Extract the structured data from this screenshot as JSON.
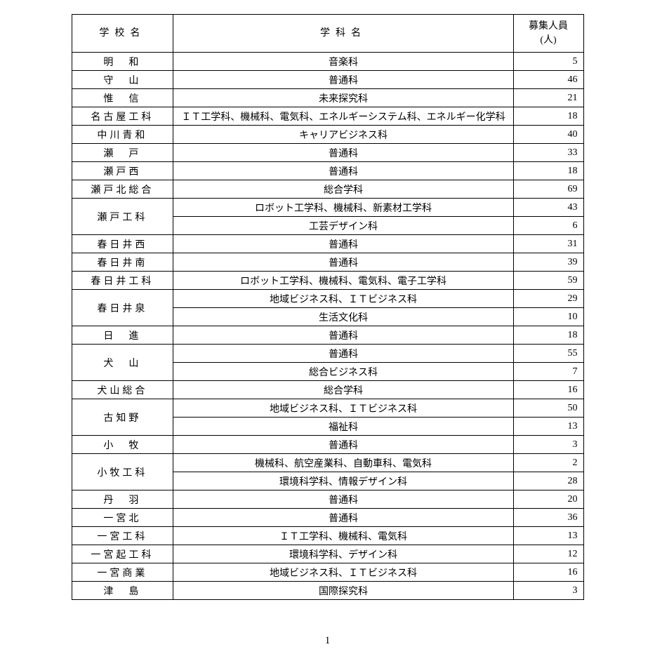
{
  "table": {
    "headers": {
      "school": "学校名",
      "department": "学科名",
      "count": "募集人員\n(人)"
    },
    "rows": [
      {
        "school": "明　和",
        "dept": "音楽科",
        "count": "5",
        "rowspan": 1
      },
      {
        "school": "守　山",
        "dept": "普通科",
        "count": "46",
        "rowspan": 1
      },
      {
        "school": "惟　信",
        "dept": "未来探究科",
        "count": "21",
        "rowspan": 1
      },
      {
        "school": "名古屋工科",
        "dept": "ＩＴ工学科、機械科、電気科、エネルギーシステム科、エネルギー化学科",
        "count": "18",
        "rowspan": 1
      },
      {
        "school": "中川青和",
        "dept": "キャリアビジネス科",
        "count": "40",
        "rowspan": 1
      },
      {
        "school": "瀬　戸",
        "dept": "普通科",
        "count": "33",
        "rowspan": 1
      },
      {
        "school": "瀬戸西",
        "dept": "普通科",
        "count": "18",
        "rowspan": 1
      },
      {
        "school": "瀬戸北総合",
        "dept": "総合学科",
        "count": "69",
        "rowspan": 1
      },
      {
        "school": "瀬戸工科",
        "dept": "ロボット工学科、機械科、新素材工学科",
        "count": "43",
        "rowspan": 2
      },
      {
        "school": null,
        "dept": "工芸デザイン科",
        "count": "6",
        "rowspan": 0
      },
      {
        "school": "春日井西",
        "dept": "普通科",
        "count": "31",
        "rowspan": 1
      },
      {
        "school": "春日井南",
        "dept": "普通科",
        "count": "39",
        "rowspan": 1
      },
      {
        "school": "春日井工科",
        "dept": "ロボット工学科、機械科、電気科、電子工学科",
        "count": "59",
        "rowspan": 1
      },
      {
        "school": "春日井泉",
        "dept": "地域ビジネス科、ＩＴビジネス科",
        "count": "29",
        "rowspan": 2
      },
      {
        "school": null,
        "dept": "生活文化科",
        "count": "10",
        "rowspan": 0
      },
      {
        "school": "日　進",
        "dept": "普通科",
        "count": "18",
        "rowspan": 1
      },
      {
        "school": "犬　山",
        "dept": "普通科",
        "count": "55",
        "rowspan": 2
      },
      {
        "school": null,
        "dept": "総合ビジネス科",
        "count": "7",
        "rowspan": 0
      },
      {
        "school": "犬山総合",
        "dept": "総合学科",
        "count": "16",
        "rowspan": 1
      },
      {
        "school": "古知野",
        "dept": "地域ビジネス科、ＩＴビジネス科",
        "count": "50",
        "rowspan": 2
      },
      {
        "school": null,
        "dept": "福祉科",
        "count": "13",
        "rowspan": 0
      },
      {
        "school": "小　牧",
        "dept": "普通科",
        "count": "3",
        "rowspan": 1
      },
      {
        "school": "小牧工科",
        "dept": "機械科、航空産業科、自動車科、電気科",
        "count": "2",
        "rowspan": 2
      },
      {
        "school": null,
        "dept": "環境科学科、情報デザイン科",
        "count": "28",
        "rowspan": 0
      },
      {
        "school": "丹　羽",
        "dept": "普通科",
        "count": "20",
        "rowspan": 1
      },
      {
        "school": "一宮北",
        "dept": "普通科",
        "count": "36",
        "rowspan": 1
      },
      {
        "school": "一宮工科",
        "dept": "ＩＴ工学科、機械科、電気科",
        "count": "13",
        "rowspan": 1
      },
      {
        "school": "一宮起工科",
        "dept": "環境科学科、デザイン科",
        "count": "12",
        "rowspan": 1
      },
      {
        "school": "一宮商業",
        "dept": "地域ビジネス科、ＩＴビジネス科",
        "count": "16",
        "rowspan": 1
      },
      {
        "school": "津　島",
        "dept": "国際探究科",
        "count": "3",
        "rowspan": 1
      }
    ]
  },
  "pageNumber": "1"
}
